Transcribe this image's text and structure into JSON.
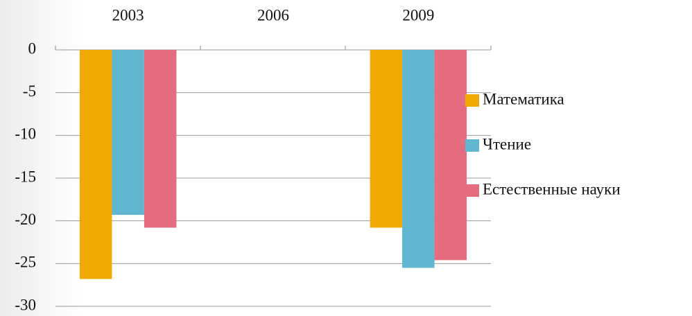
{
  "chart_data": {
    "type": "bar",
    "categories": [
      "2003",
      "2006",
      "2009"
    ],
    "series": [
      {
        "name": "Математика",
        "color": "#f0a900",
        "values": [
          -26.8,
          null,
          -20.8
        ]
      },
      {
        "name": "Чтение",
        "color": "#60b5cf",
        "values": [
          -19.3,
          null,
          -25.5
        ]
      },
      {
        "name": "Естественные науки",
        "color": "#e46c7e",
        "values": [
          -20.8,
          null,
          -24.6
        ]
      }
    ],
    "ylim": [
      -30,
      0
    ],
    "yticks": [
      0,
      -5,
      -10,
      -15,
      -20,
      -25,
      -30
    ],
    "grid": true,
    "legend": "right"
  }
}
